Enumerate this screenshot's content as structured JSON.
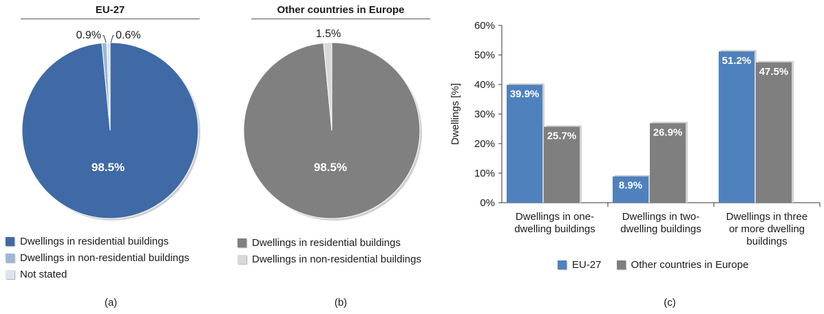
{
  "chart_data": [
    {
      "type": "pie",
      "title": "EU-27",
      "caption": "(a)",
      "slices": [
        {
          "label": "Dwellings in residential buildings",
          "value": 98.5,
          "display": "98.5%",
          "color": "#3f6aa5"
        },
        {
          "label": "Dwellings in non-residential buildings",
          "value": 0.9,
          "display": "0.9%",
          "color": "#9cb8d8"
        },
        {
          "label": "Not stated",
          "value": 0.6,
          "display": "0.6%",
          "color": "#dbe5f1"
        }
      ]
    },
    {
      "type": "pie",
      "title": "Other countries in Europe",
      "caption": "(b)",
      "slices": [
        {
          "label": "Dwellings in residential buildings",
          "value": 98.5,
          "display": "98.5%",
          "color": "#808080"
        },
        {
          "label": "Dwellings in non-residential buildings",
          "value": 1.5,
          "display": "1.5%",
          "color": "#d9d9d9"
        }
      ]
    },
    {
      "type": "bar",
      "caption": "(c)",
      "ylabel": "Dwellings [%]",
      "ylim": [
        0,
        60
      ],
      "yticks": [
        "0%",
        "10%",
        "20%",
        "30%",
        "40%",
        "50%",
        "60%"
      ],
      "categories": [
        [
          "Dwellings in one-",
          "dwelling buildings"
        ],
        [
          "Dwellings in two-",
          "dwelling buildings"
        ],
        [
          "Dwellings in three",
          "or more dwelling",
          "buildings"
        ]
      ],
      "series": [
        {
          "name": "EU-27",
          "values": [
            39.9,
            8.9,
            51.2
          ],
          "labels": [
            "39.9%",
            "8.9%",
            "51.2%"
          ],
          "color": "#4f81bd"
        },
        {
          "name": "Other countries in Europe",
          "values": [
            25.7,
            26.9,
            47.5
          ],
          "labels": [
            "25.7%",
            "26.9%",
            "47.5%"
          ],
          "color": "#7f7f7f"
        }
      ],
      "grid": false
    }
  ]
}
